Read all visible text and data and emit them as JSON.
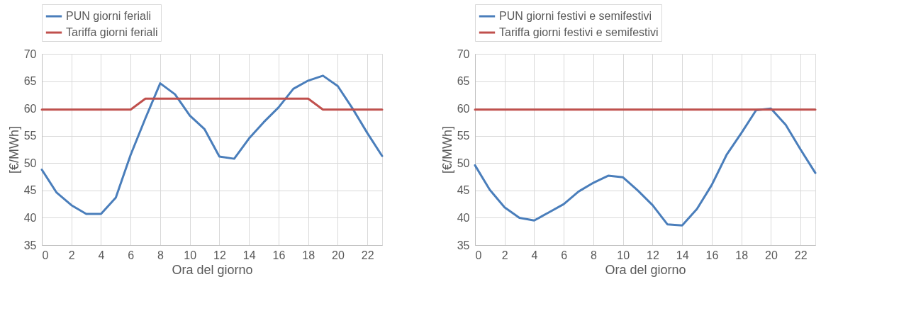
{
  "chart_data": [
    {
      "type": "line",
      "xlabel": "Ora del giorno",
      "ylabel": "[€/MWh]",
      "x": [
        0,
        1,
        2,
        3,
        4,
        5,
        6,
        7,
        8,
        9,
        10,
        11,
        12,
        13,
        14,
        15,
        16,
        17,
        18,
        19,
        20,
        21,
        22,
        23
      ],
      "xlim": [
        0,
        23
      ],
      "xticks": [
        0,
        2,
        4,
        6,
        8,
        10,
        12,
        14,
        16,
        18,
        20,
        22
      ],
      "ylim": [
        35,
        70
      ],
      "yticks": [
        35,
        40,
        45,
        50,
        55,
        60,
        65,
        70
      ],
      "grid": true,
      "legend": "top",
      "marker": "none",
      "line_style": "solid",
      "series": [
        {
          "name": "PUN giorni feriali",
          "color": "#4a7ebb",
          "values": [
            48.8,
            44.6,
            42.3,
            40.7,
            40.7,
            43.7,
            51.5,
            58.2,
            64.6,
            62.6,
            58.7,
            56.2,
            51.2,
            50.8,
            54.5,
            57.5,
            60.2,
            63.6,
            65.1,
            66.0,
            64.1,
            60.0,
            55.5,
            51.3
          ]
        },
        {
          "name": "Tariffa giorni feriali",
          "color": "#c0504d",
          "values": [
            59.8,
            59.8,
            59.8,
            59.8,
            59.8,
            59.8,
            59.8,
            61.8,
            61.8,
            61.8,
            61.8,
            61.8,
            61.8,
            61.8,
            61.8,
            61.8,
            61.8,
            61.8,
            61.8,
            59.8,
            59.8,
            59.8,
            59.8,
            59.8
          ]
        }
      ]
    },
    {
      "type": "line",
      "xlabel": "Ora del giorno",
      "ylabel": "[€/MWh]",
      "x": [
        0,
        1,
        2,
        3,
        4,
        5,
        6,
        7,
        8,
        9,
        10,
        11,
        12,
        13,
        14,
        15,
        16,
        17,
        18,
        19,
        20,
        21,
        22,
        23
      ],
      "xlim": [
        0,
        23
      ],
      "xticks": [
        0,
        2,
        4,
        6,
        8,
        10,
        12,
        14,
        16,
        18,
        20,
        22
      ],
      "ylim": [
        35,
        70
      ],
      "yticks": [
        35,
        40,
        45,
        50,
        55,
        60,
        65,
        70
      ],
      "grid": true,
      "legend": "top",
      "marker": "none",
      "line_style": "solid",
      "series": [
        {
          "name": "PUN giorni festivi e semifestivi",
          "color": "#4a7ebb",
          "values": [
            49.6,
            45.1,
            41.9,
            40.0,
            39.5,
            41.0,
            42.5,
            44.8,
            46.4,
            47.7,
            47.4,
            45.0,
            42.3,
            38.8,
            38.6,
            41.6,
            46.0,
            51.5,
            55.5,
            59.7,
            60.0,
            57.0,
            52.5,
            48.2
          ]
        },
        {
          "name": "Tariffa giorni festivi e semifestivi",
          "color": "#c0504d",
          "values": [
            59.8,
            59.8,
            59.8,
            59.8,
            59.8,
            59.8,
            59.8,
            59.8,
            59.8,
            59.8,
            59.8,
            59.8,
            59.8,
            59.8,
            59.8,
            59.8,
            59.8,
            59.8,
            59.8,
            59.8,
            59.8,
            59.8,
            59.8,
            59.8
          ]
        }
      ]
    }
  ]
}
